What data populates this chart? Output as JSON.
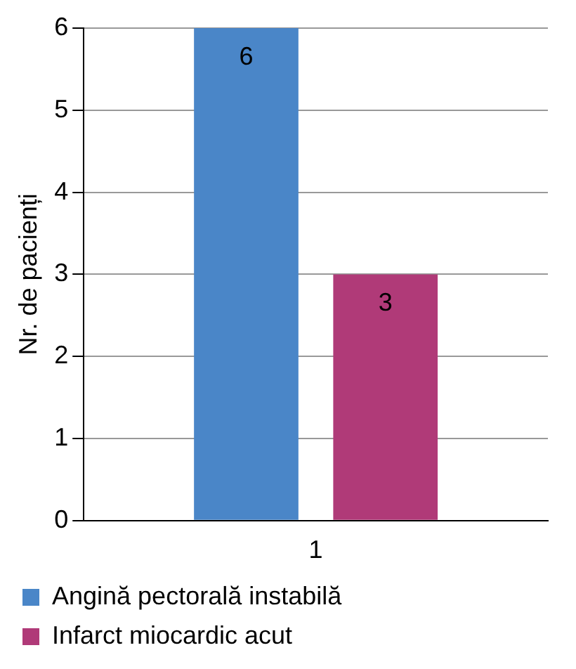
{
  "chart_data": {
    "type": "bar",
    "ylabel": "Nr. de pacienți",
    "categories": [
      "1"
    ],
    "series": [
      {
        "name": "Angină pectorală instabilă",
        "color": "#4a86c8",
        "values": [
          6
        ]
      },
      {
        "name": "Infarct miocardic acut",
        "color": "#b03a78",
        "values": [
          3
        ]
      }
    ],
    "ylim": [
      0,
      6
    ],
    "yticks": [
      0,
      1,
      2,
      3,
      4,
      5,
      6
    ],
    "grid": "y",
    "legend": "bottom",
    "data_labels": true
  }
}
